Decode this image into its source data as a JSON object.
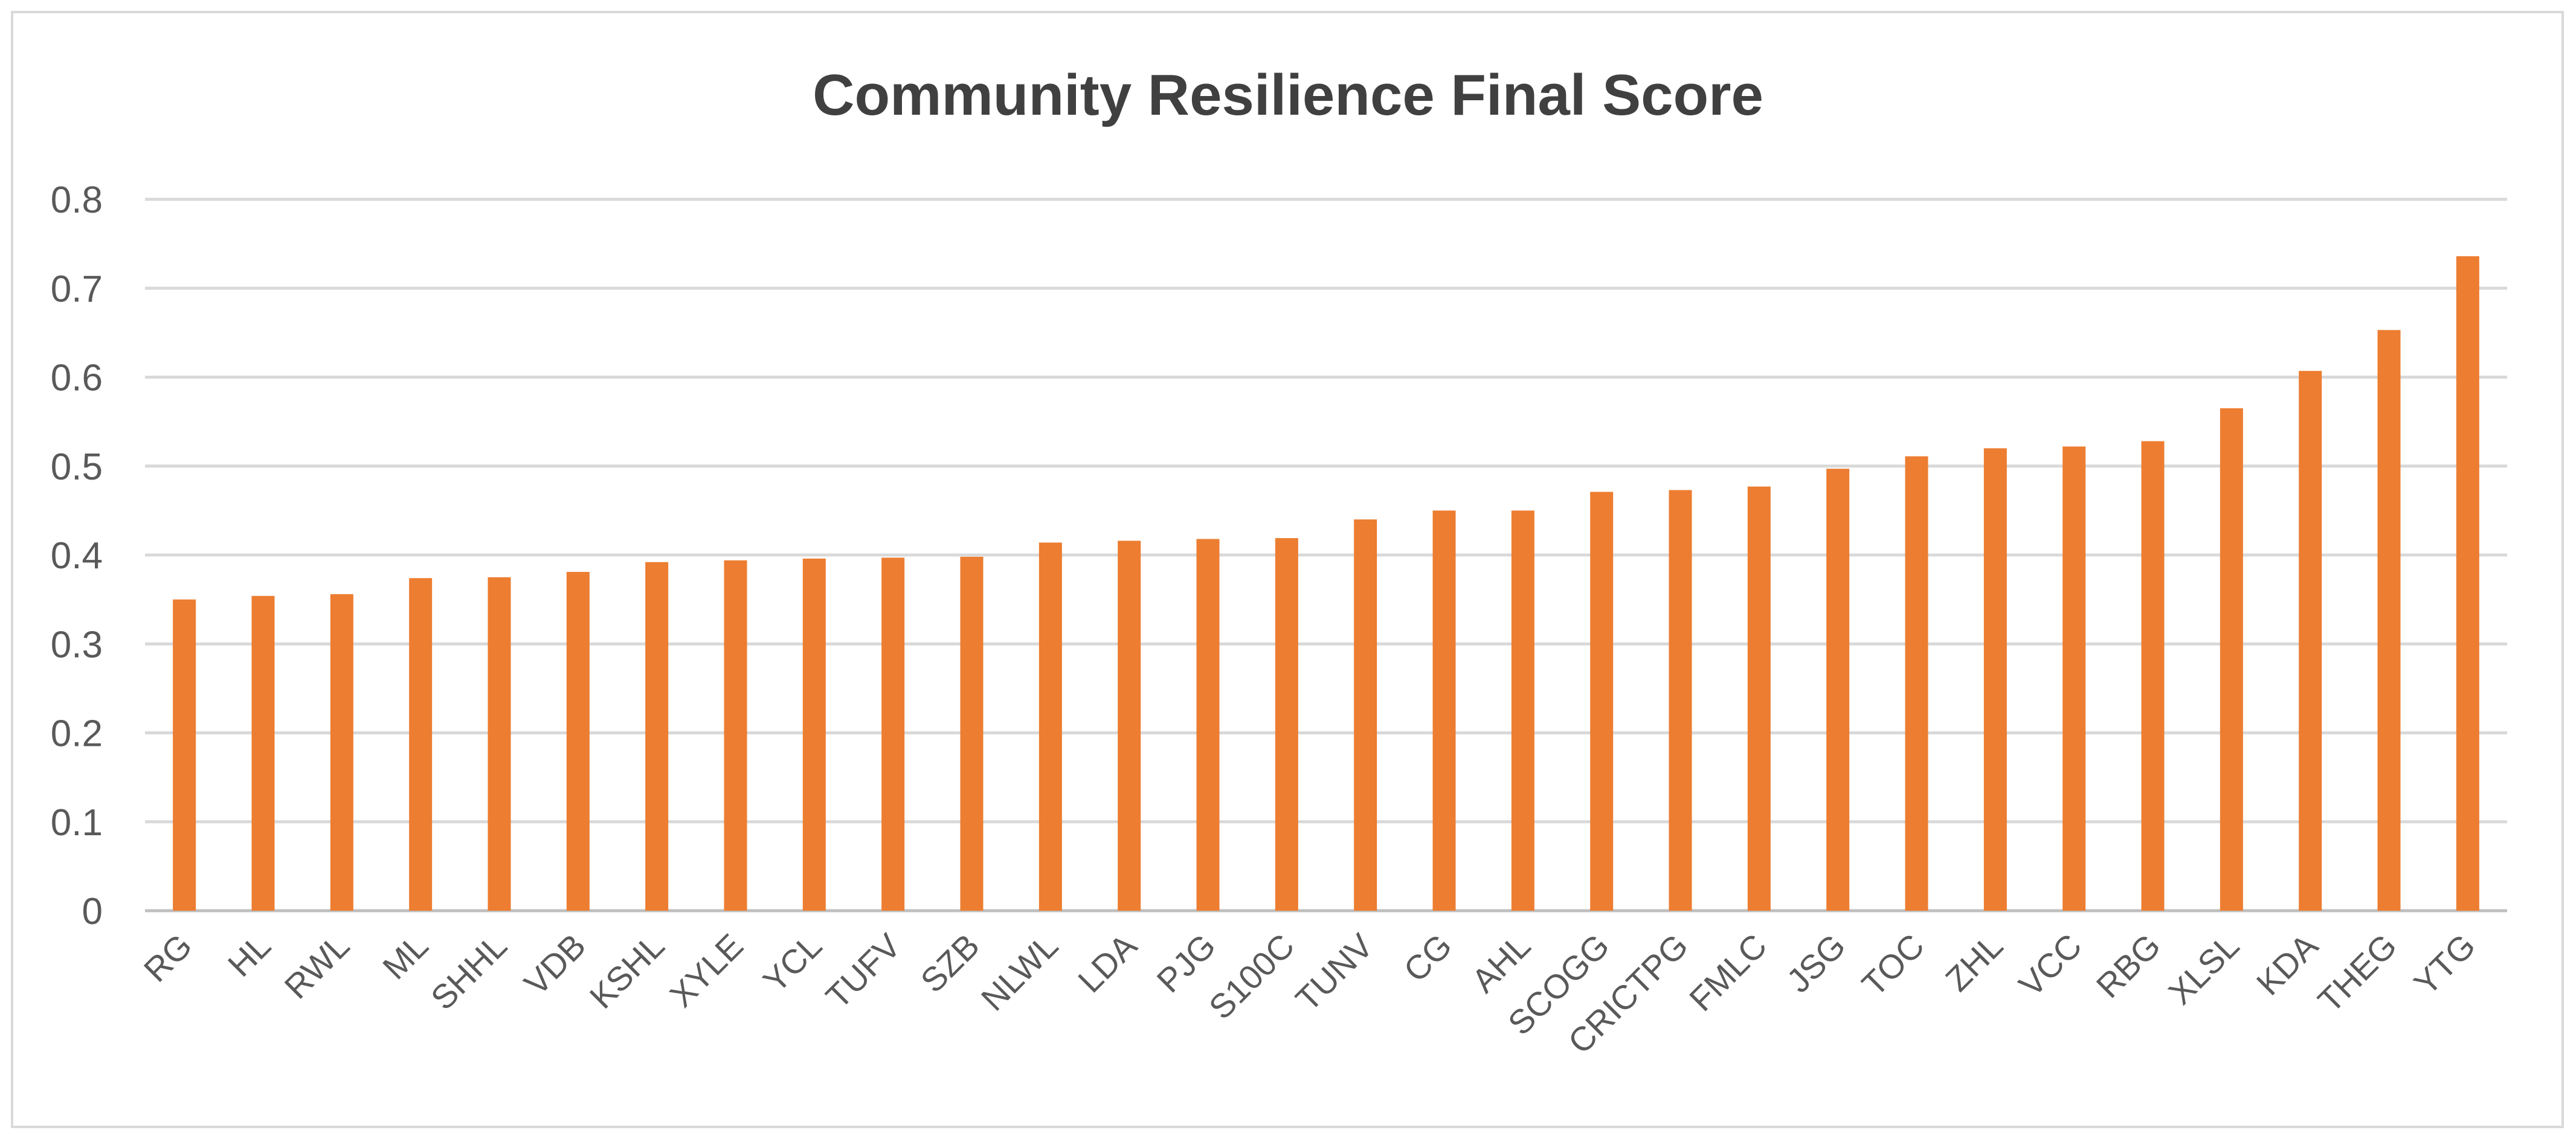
{
  "chart_data": {
    "type": "bar",
    "title": "Community Resilience Final Score",
    "xlabel": "",
    "ylabel": "",
    "ylim": [
      0,
      0.8
    ],
    "yticks": [
      "0",
      "0.1",
      "0.2",
      "0.3",
      "0.4",
      "0.5",
      "0.6",
      "0.7",
      "0.8"
    ],
    "grid": true,
    "legend": "none",
    "bar_color": "#ED7D31",
    "categories": [
      "RG",
      "HL",
      "RWL",
      "ML",
      "SHHL",
      "VDB",
      "KSHL",
      "XYLE",
      "YCL",
      "TUFV",
      "SZB",
      "NLWL",
      "LDA",
      "PJG",
      "S100C",
      "TUNV",
      "CG",
      "AHL",
      "SCOGG",
      "CRICTPG",
      "FMLC",
      "JSG",
      "TOC",
      "ZHL",
      "VCC",
      "RBG",
      "XLSL",
      "KDA",
      "THEG",
      "YTG"
    ],
    "values": [
      0.35,
      0.354,
      0.356,
      0.374,
      0.375,
      0.381,
      0.392,
      0.394,
      0.396,
      0.397,
      0.398,
      0.414,
      0.416,
      0.418,
      0.419,
      0.44,
      0.45,
      0.45,
      0.471,
      0.473,
      0.477,
      0.497,
      0.511,
      0.52,
      0.522,
      0.528,
      0.565,
      0.607,
      0.653,
      0.736
    ]
  }
}
